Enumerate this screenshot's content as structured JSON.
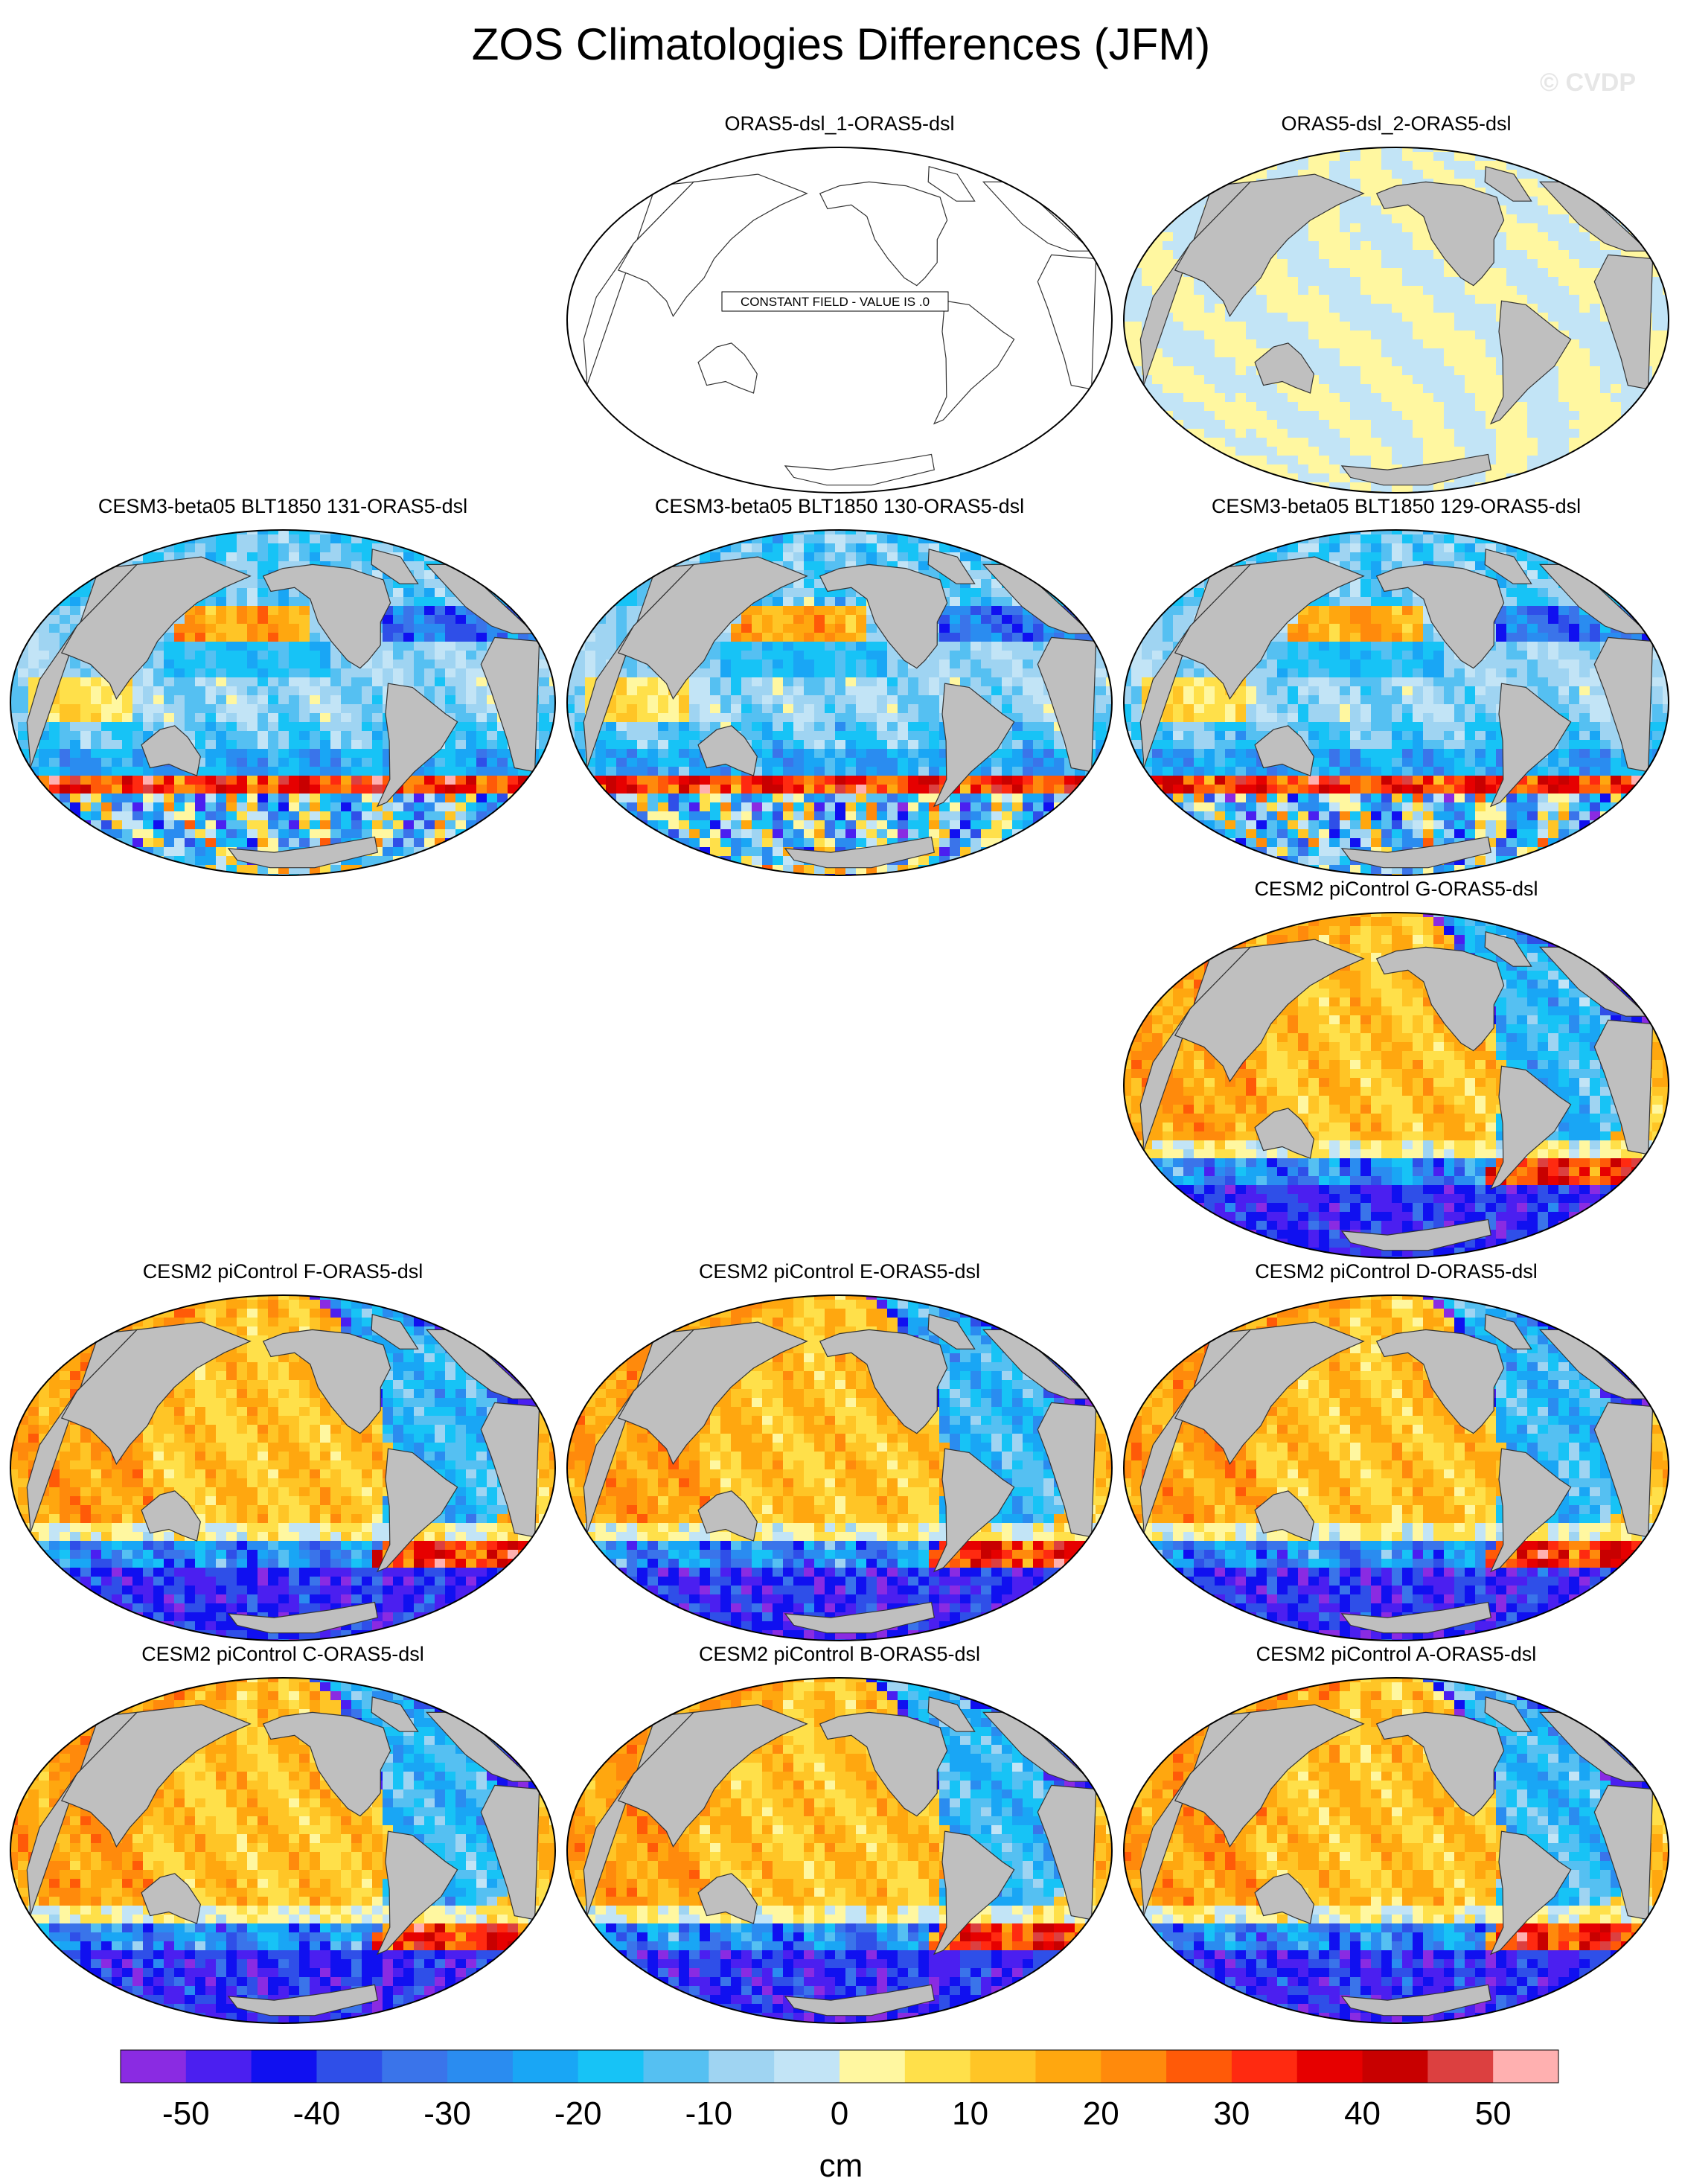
{
  "title": "ZOS Climatologies Differences (JFM)",
  "watermark": "© CVDP",
  "colorbar": {
    "units": "cm",
    "tick_labels": [
      "-50",
      "-40",
      "-30",
      "-20",
      "-10",
      "0",
      "10",
      "20",
      "30",
      "40",
      "50"
    ],
    "colors": [
      "#8a2be2",
      "#4b1ff0",
      "#1010f0",
      "#2f4fe8",
      "#3a74ea",
      "#2a8cf0",
      "#19a6f5",
      "#17c3f6",
      "#55c0f2",
      "#9fd4f2",
      "#c2e4f6",
      "#fff7a0",
      "#ffe04a",
      "#ffc526",
      "#ffa70f",
      "#ff8a0c",
      "#ff5a08",
      "#ff2a10",
      "#e60000",
      "#c80000",
      "#dc4040",
      "#ffb0b0"
    ]
  },
  "panels": [
    {
      "id": "p01",
      "title": "ORAS5-dsl_1-ORAS5-dsl",
      "pattern": "constant",
      "note": "CONSTANT FIELD - VALUE IS .0"
    },
    {
      "id": "p02",
      "title": "ORAS5-dsl_2-ORAS5-dsl",
      "pattern": "near-zero"
    },
    {
      "id": "p03",
      "title": "CESM3-beta05 BLT1850 131-ORAS5-dsl",
      "pattern": "cesm3"
    },
    {
      "id": "p04",
      "title": "CESM3-beta05 BLT1850 130-ORAS5-dsl",
      "pattern": "cesm3"
    },
    {
      "id": "p05",
      "title": "CESM3-beta05 BLT1850 129-ORAS5-dsl",
      "pattern": "cesm3"
    },
    {
      "id": "p06",
      "title": "CESM2 piControl G-ORAS5-dsl",
      "pattern": "cesm2"
    },
    {
      "id": "p07",
      "title": "CESM2 piControl F-ORAS5-dsl",
      "pattern": "cesm2"
    },
    {
      "id": "p08",
      "title": "CESM2 piControl E-ORAS5-dsl",
      "pattern": "cesm2"
    },
    {
      "id": "p09",
      "title": "CESM2 piControl D-ORAS5-dsl",
      "pattern": "cesm2"
    },
    {
      "id": "p10",
      "title": "CESM2 piControl C-ORAS5-dsl",
      "pattern": "cesm2"
    },
    {
      "id": "p11",
      "title": "CESM2 piControl B-ORAS5-dsl",
      "pattern": "cesm2"
    },
    {
      "id": "p12",
      "title": "CESM2 piControl A-ORAS5-dsl",
      "pattern": "cesm2"
    }
  ],
  "chart_data": {
    "type": "heatmap",
    "title": "ZOS Climatologies Differences (JFM)",
    "projection": "Robinson (Pacific-centered)",
    "units": "cm",
    "color_scale": {
      "min": -55,
      "max": 55,
      "interval": 5
    },
    "panel_summaries": [
      {
        "panel": "ORAS5-dsl_1-ORAS5-dsl",
        "field": "constant 0"
      },
      {
        "panel": "ORAS5-dsl_2-ORAS5-dsl",
        "range_approx": [
          -5,
          5
        ]
      },
      {
        "panel": "CESM3-beta05 BLT1850 131-ORAS5-dsl",
        "range_approx": [
          -50,
          35
        ]
      },
      {
        "panel": "CESM3-beta05 BLT1850 130-ORAS5-dsl",
        "range_approx": [
          -50,
          35
        ]
      },
      {
        "panel": "CESM3-beta05 BLT1850 129-ORAS5-dsl",
        "range_approx": [
          -50,
          35
        ]
      },
      {
        "panel": "CESM2 piControl G-ORAS5-dsl",
        "range_approx": [
          -55,
          35
        ]
      },
      {
        "panel": "CESM2 piControl F-ORAS5-dsl",
        "range_approx": [
          -55,
          35
        ]
      },
      {
        "panel": "CESM2 piControl E-ORAS5-dsl",
        "range_approx": [
          -55,
          35
        ]
      },
      {
        "panel": "CESM2 piControl D-ORAS5-dsl",
        "range_approx": [
          -55,
          35
        ]
      },
      {
        "panel": "CESM2 piControl C-ORAS5-dsl",
        "range_approx": [
          -55,
          35
        ]
      },
      {
        "panel": "CESM2 piControl B-ORAS5-dsl",
        "range_approx": [
          -55,
          35
        ]
      },
      {
        "panel": "CESM2 piControl A-ORAS5-dsl",
        "range_approx": [
          -55,
          35
        ]
      }
    ]
  }
}
